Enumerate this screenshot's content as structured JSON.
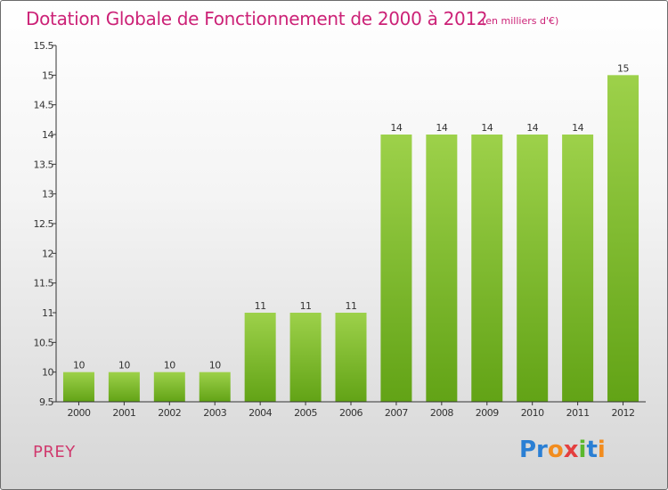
{
  "header": {
    "title": "Dotation Globale de Fonctionnement de 2000 à 2012",
    "subtitle": "(en milliers d'€)"
  },
  "footer": {
    "commune": "PREY",
    "brand": "Proxiti"
  },
  "colors": {
    "title": "#cc2277",
    "bar_top": "#9dd14a",
    "bar_bottom": "#62a316"
  },
  "chart_data": {
    "type": "bar",
    "title": "Dotation Globale de Fonctionnement de 2000 à 2012",
    "subtitle": "(en milliers d'€)",
    "xlabel": "",
    "ylabel": "",
    "categories": [
      "2000",
      "2001",
      "2002",
      "2003",
      "2004",
      "2005",
      "2006",
      "2007",
      "2008",
      "2009",
      "2010",
      "2011",
      "2012"
    ],
    "values": [
      10,
      10,
      10,
      10,
      11,
      11,
      11,
      14,
      14,
      14,
      14,
      14,
      15
    ],
    "ylim": [
      9.5,
      15.5
    ],
    "yticks": [
      "9.5",
      "10",
      "10.5",
      "11",
      "11.5",
      "12",
      "12.5",
      "13",
      "13.5",
      "14",
      "14.5",
      "15",
      "15.5"
    ],
    "grid": false,
    "data_labels": true
  }
}
